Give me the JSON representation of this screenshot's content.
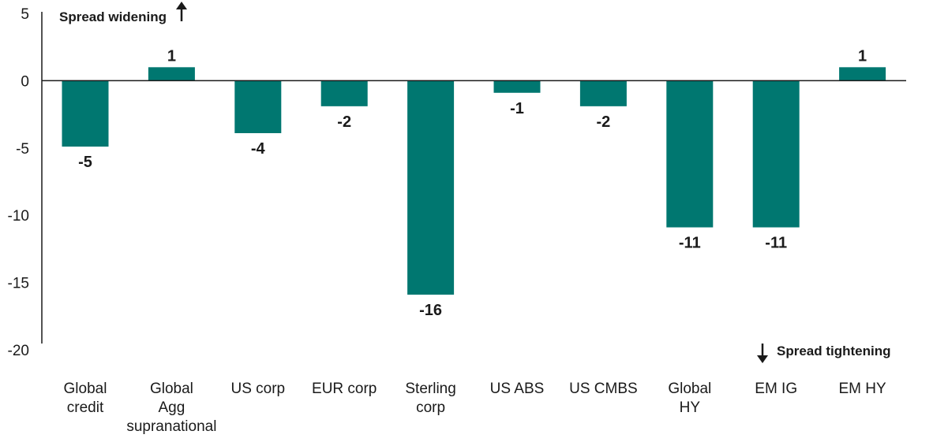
{
  "chart_data": {
    "type": "bar",
    "title": "",
    "xlabel": "",
    "ylabel": "",
    "ylim": [
      -20,
      5
    ],
    "yticks": [
      5,
      0,
      -5,
      -10,
      -15,
      -20
    ],
    "categories": [
      [
        "Global",
        "credit"
      ],
      [
        "Global",
        "Agg",
        "supranational"
      ],
      [
        "US corp"
      ],
      [
        "EUR corp"
      ],
      [
        "Sterling",
        "corp"
      ],
      [
        "US ABS"
      ],
      [
        "US CMBS"
      ],
      [
        "Global",
        "HY"
      ],
      [
        "EM IG"
      ],
      [
        "EM HY"
      ]
    ],
    "values": [
      -5,
      1,
      -4,
      -2,
      -16,
      -1,
      -2,
      -11,
      -11,
      1
    ],
    "plotted_values": [
      -4.9,
      1.0,
      -3.9,
      -1.9,
      -15.9,
      -0.9,
      -1.9,
      -10.9,
      -10.9,
      1.0
    ],
    "data_labels": [
      "-5",
      "1",
      "-4",
      "-2",
      "-16",
      "-1",
      "-2",
      "-11",
      "-11",
      "1"
    ],
    "bar_color": "#007770",
    "annotations": {
      "widening": "Spread widening",
      "tightening": "Spread tightening"
    }
  }
}
